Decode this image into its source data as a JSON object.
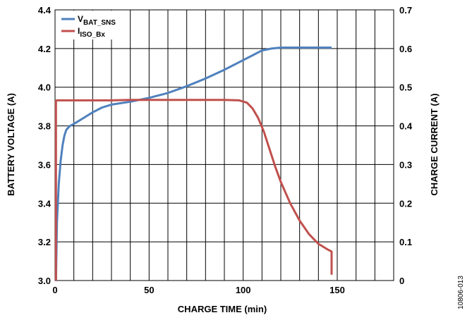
{
  "chart_data": {
    "type": "line",
    "title": "",
    "xlabel": "CHARGE TIME (min)",
    "ylabel_left": "BATTERY VOLTAGE (A)",
    "ylabel_right": "CHARGE CURRENT (A)",
    "xlim": [
      0,
      180
    ],
    "ylim_left": [
      3.0,
      4.4
    ],
    "ylim_right": [
      0,
      0.7
    ],
    "x_ticks": [
      0,
      50,
      100,
      150
    ],
    "x_tick_labels": [
      "0",
      "50",
      "100",
      "150"
    ],
    "y_left_ticks": [
      3.0,
      3.2,
      3.4,
      3.6,
      3.8,
      4.0,
      4.2,
      4.4
    ],
    "y_left_tick_labels": [
      "3.0",
      "3.2",
      "3.4",
      "3.6",
      "3.8",
      "4.0",
      "4.2",
      "4.4"
    ],
    "y_right_ticks": [
      0,
      0.1,
      0.2,
      0.3,
      0.4,
      0.5,
      0.6,
      0.7
    ],
    "y_right_tick_labels": [
      "0",
      "0.1",
      "0.2",
      "0.3",
      "0.4",
      "0.5",
      "0.6",
      "0.7"
    ],
    "grid": true,
    "legend_position": "top-left",
    "series": [
      {
        "name": "VBAT_SNS",
        "name_main": "V",
        "name_sub": "BAT_SNS",
        "axis": "left",
        "color": "#4f81bd",
        "x": [
          0.5,
          1,
          2,
          3,
          4,
          5,
          6,
          8,
          10,
          15,
          20,
          25,
          30,
          40,
          50,
          60,
          70,
          80,
          90,
          100,
          105,
          110,
          115,
          120,
          130,
          140,
          147
        ],
        "y": [
          3.0,
          3.3,
          3.5,
          3.62,
          3.7,
          3.75,
          3.78,
          3.8,
          3.81,
          3.84,
          3.87,
          3.895,
          3.91,
          3.925,
          3.945,
          3.97,
          4.005,
          4.045,
          4.09,
          4.14,
          4.165,
          4.19,
          4.2,
          4.205,
          4.205,
          4.205,
          4.205
        ]
      },
      {
        "name": "IISO_Bx",
        "name_main": "I",
        "name_sub": "ISO_Bx",
        "axis": "right",
        "color": "#c0504d",
        "x": [
          0.5,
          0.5,
          1,
          10,
          20,
          30,
          40,
          50,
          60,
          70,
          80,
          90,
          98,
          102,
          105,
          108,
          111,
          114,
          117,
          120,
          125,
          130,
          135,
          140,
          145,
          147,
          147,
          147
        ],
        "y": [
          0,
          0.465,
          0.466,
          0.466,
          0.466,
          0.466,
          0.467,
          0.467,
          0.467,
          0.467,
          0.467,
          0.467,
          0.466,
          0.46,
          0.445,
          0.42,
          0.385,
          0.34,
          0.295,
          0.255,
          0.2,
          0.155,
          0.12,
          0.095,
          0.08,
          0.075,
          0.05,
          0.015
        ]
      }
    ]
  },
  "figure_code": "10806-013"
}
